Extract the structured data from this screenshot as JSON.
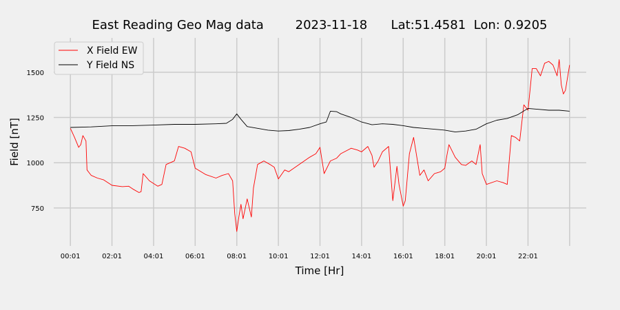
{
  "chart_data": {
    "type": "line",
    "title": "East Reading Geo Mag data        2023-11-18      Lat:51.4581  Lon: 0.9205",
    "xlabel": "Time  [Hr]",
    "ylabel": "Field  [nT]",
    "xlim": [
      -0.8,
      24.8
    ],
    "ylim": [
      540,
      1690
    ],
    "x_ticks": [
      0,
      2,
      4,
      6,
      8,
      10,
      12,
      14,
      16,
      18,
      20,
      22
    ],
    "x_tick_labels": [
      "00:01",
      "02:01",
      "04:01",
      "06:01",
      "08:01",
      "10:01",
      "12:01",
      "14:01",
      "16:01",
      "18:01",
      "20:01",
      "22:01"
    ],
    "y_ticks": [
      750,
      1000,
      1250,
      1500
    ],
    "y_tick_labels": [
      "750",
      "1000",
      "1250",
      "1500"
    ],
    "grid": true,
    "legend_position": "top-left",
    "series": [
      {
        "name": "X Field EW",
        "color": "#ff0000",
        "x": [
          0,
          0.2,
          0.4,
          0.5,
          0.6,
          0.75,
          0.8,
          1.0,
          1.3,
          1.6,
          2.0,
          2.5,
          2.8,
          3.0,
          3.3,
          3.4,
          3.5,
          3.8,
          4.0,
          4.2,
          4.4,
          4.6,
          5.0,
          5.2,
          5.5,
          5.8,
          6.0,
          6.5,
          7.0,
          7.3,
          7.6,
          7.8,
          7.9,
          8.0,
          8.1,
          8.2,
          8.3,
          8.5,
          8.7,
          8.8,
          9.0,
          9.3,
          9.6,
          9.8,
          10.0,
          10.3,
          10.5,
          11.0,
          11.5,
          11.8,
          12.0,
          12.2,
          12.5,
          12.8,
          13.0,
          13.5,
          13.8,
          14.0,
          14.3,
          14.5,
          14.6,
          14.8,
          15.0,
          15.3,
          15.5,
          15.7,
          15.8,
          16.0,
          16.1,
          16.3,
          16.5,
          16.8,
          17.0,
          17.2,
          17.5,
          17.8,
          18.0,
          18.1,
          18.2,
          18.5,
          18.8,
          19.0,
          19.3,
          19.5,
          19.7,
          19.8,
          20.0,
          20.5,
          20.8,
          21.0,
          21.2,
          21.4,
          21.6,
          21.8,
          22.0,
          22.2,
          22.4,
          22.6,
          22.8,
          23.0,
          23.2,
          23.4,
          23.5,
          23.6,
          23.7,
          23.8,
          24.0
        ],
        "values": [
          1190,
          1140,
          1085,
          1100,
          1150,
          1120,
          960,
          930,
          915,
          905,
          875,
          868,
          870,
          855,
          835,
          840,
          940,
          900,
          885,
          870,
          880,
          990,
          1010,
          1090,
          1080,
          1060,
          970,
          935,
          915,
          930,
          940,
          900,
          720,
          620,
          700,
          770,
          690,
          800,
          700,
          860,
          990,
          1010,
          990,
          975,
          910,
          960,
          950,
          990,
          1030,
          1050,
          1085,
          940,
          1010,
          1025,
          1050,
          1080,
          1070,
          1060,
          1090,
          1040,
          975,
          1010,
          1060,
          1090,
          790,
          980,
          880,
          760,
          790,
          1050,
          1140,
          930,
          960,
          900,
          940,
          950,
          970,
          1040,
          1100,
          1030,
          990,
          985,
          1010,
          990,
          1100,
          940,
          880,
          900,
          890,
          880,
          1150,
          1140,
          1120,
          1320,
          1290,
          1520,
          1520,
          1480,
          1550,
          1560,
          1540,
          1480,
          1570,
          1430,
          1380,
          1400,
          1540
        ]
      },
      {
        "name": "Y Field NS",
        "color": "#000000",
        "x": [
          0,
          1,
          2,
          3,
          4,
          5,
          6,
          7,
          7.5,
          7.8,
          8.0,
          8.2,
          8.5,
          9.0,
          9.5,
          10.0,
          10.5,
          11.0,
          11.5,
          12.0,
          12.3,
          12.5,
          12.8,
          13.0,
          13.5,
          14.0,
          14.5,
          15.0,
          15.5,
          16.0,
          16.5,
          17.0,
          17.5,
          18.0,
          18.5,
          19.0,
          19.5,
          20.0,
          20.5,
          21.0,
          21.5,
          22.0,
          22.5,
          23.0,
          23.5,
          24.0
        ],
        "values": [
          1195,
          1198,
          1204,
          1205,
          1208,
          1212,
          1212,
          1215,
          1218,
          1240,
          1270,
          1240,
          1200,
          1190,
          1180,
          1175,
          1178,
          1185,
          1195,
          1215,
          1225,
          1285,
          1282,
          1270,
          1250,
          1225,
          1210,
          1215,
          1212,
          1205,
          1195,
          1190,
          1185,
          1180,
          1170,
          1175,
          1185,
          1215,
          1235,
          1245,
          1265,
          1300,
          1295,
          1290,
          1290,
          1285
        ]
      }
    ]
  }
}
